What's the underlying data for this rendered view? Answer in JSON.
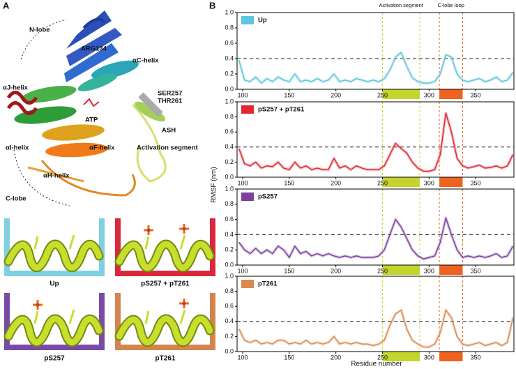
{
  "panel_a": {
    "label": "A",
    "structure_labels": [
      "N-lobe",
      "ARG134",
      "αC-helix",
      "αJ-helix",
      "SER257",
      "THR261",
      "ATP",
      "ASH",
      "αI-helix",
      "αF-helix",
      "Activation segment",
      "αH-helix",
      "C-lobe"
    ],
    "tiles": [
      "Up",
      "pS257 + pT261",
      "pS257",
      "pT261"
    ]
  },
  "panel_b": {
    "label": "B",
    "y_label": "RMSF (nm)",
    "x_label": "Residue number",
    "regions": [
      {
        "label": "Activation segment",
        "start": 250,
        "end": 290,
        "color": "#c3d52a"
      },
      {
        "label": "C-lobe loop",
        "start": 311,
        "end": 336,
        "color": "#f0621f"
      }
    ],
    "reference_line": 0.4
  },
  "chart_data": [
    {
      "type": "line",
      "xlim": [
        94,
        391
      ],
      "ylim": [
        0,
        1
      ],
      "xticks": [
        100,
        150,
        200,
        250,
        300,
        350
      ],
      "yticks": [
        {
          "value": 0,
          "label": "0.0"
        },
        0.2,
        0.4,
        0.6,
        0.8,
        {
          "value": 1,
          "label": "1.0"
        }
      ],
      "x": [
        96,
        102,
        108,
        114,
        120,
        126,
        132,
        138,
        144,
        150,
        156,
        162,
        168,
        174,
        180,
        186,
        192,
        198,
        204,
        210,
        216,
        222,
        228,
        234,
        240,
        246,
        252,
        258,
        264,
        270,
        276,
        282,
        288,
        294,
        300,
        306,
        312,
        318,
        324,
        330,
        336,
        342,
        348,
        354,
        360,
        366,
        372,
        378,
        384,
        390
      ],
      "series": [
        {
          "name": "Up",
          "color": "#5bc6de",
          "values": [
            0.38,
            0.12,
            0.1,
            0.16,
            0.08,
            0.14,
            0.1,
            0.16,
            0.12,
            0.1,
            0.2,
            0.1,
            0.12,
            0.1,
            0.14,
            0.1,
            0.12,
            0.2,
            0.1,
            0.12,
            0.1,
            0.14,
            0.12,
            0.1,
            0.12,
            0.1,
            0.14,
            0.25,
            0.42,
            0.48,
            0.3,
            0.15,
            0.1,
            0.08,
            0.08,
            0.1,
            0.2,
            0.45,
            0.42,
            0.2,
            0.12,
            0.1,
            0.12,
            0.14,
            0.1,
            0.12,
            0.16,
            0.1,
            0.12,
            0.22
          ]
        }
      ]
    },
    {
      "type": "line",
      "xlim": [
        94,
        391
      ],
      "ylim": [
        0,
        1
      ],
      "xticks": [
        100,
        150,
        200,
        250,
        300,
        350
      ],
      "yticks": [
        {
          "value": 0,
          "label": "0.0"
        },
        0.2,
        0.4,
        0.6,
        0.8,
        {
          "value": 1,
          "label": "1.0"
        }
      ],
      "x": [
        96,
        102,
        108,
        114,
        120,
        126,
        132,
        138,
        144,
        150,
        156,
        162,
        168,
        174,
        180,
        186,
        192,
        198,
        204,
        210,
        216,
        222,
        228,
        234,
        240,
        246,
        252,
        258,
        264,
        270,
        276,
        282,
        288,
        294,
        300,
        306,
        312,
        318,
        324,
        330,
        336,
        342,
        348,
        354,
        360,
        366,
        372,
        378,
        384,
        390
      ],
      "series": [
        {
          "name": "pS257 + pT261",
          "color": "#e0262f",
          "values": [
            0.38,
            0.18,
            0.15,
            0.2,
            0.12,
            0.15,
            0.14,
            0.2,
            0.12,
            0.1,
            0.2,
            0.12,
            0.15,
            0.1,
            0.12,
            0.1,
            0.1,
            0.25,
            0.12,
            0.15,
            0.1,
            0.15,
            0.12,
            0.1,
            0.1,
            0.1,
            0.15,
            0.3,
            0.45,
            0.38,
            0.32,
            0.2,
            0.12,
            0.08,
            0.08,
            0.1,
            0.3,
            0.85,
            0.6,
            0.25,
            0.15,
            0.12,
            0.14,
            0.16,
            0.12,
            0.13,
            0.15,
            0.12,
            0.15,
            0.3
          ]
        }
      ]
    },
    {
      "type": "line",
      "xlim": [
        94,
        391
      ],
      "ylim": [
        0,
        1
      ],
      "xticks": [
        100,
        150,
        200,
        250,
        300,
        350
      ],
      "yticks": [
        {
          "value": 0,
          "label": "0.0"
        },
        0.2,
        0.4,
        0.6,
        0.8,
        {
          "value": 1,
          "label": "1.0"
        }
      ],
      "x": [
        96,
        102,
        108,
        114,
        120,
        126,
        132,
        138,
        144,
        150,
        156,
        162,
        168,
        174,
        180,
        186,
        192,
        198,
        204,
        210,
        216,
        222,
        228,
        234,
        240,
        246,
        252,
        258,
        264,
        270,
        276,
        282,
        288,
        294,
        300,
        306,
        312,
        318,
        324,
        330,
        336,
        342,
        348,
        354,
        360,
        366,
        372,
        378,
        384,
        390
      ],
      "series": [
        {
          "name": "pS257",
          "color": "#7b3f9e",
          "values": [
            0.3,
            0.2,
            0.15,
            0.22,
            0.15,
            0.2,
            0.15,
            0.25,
            0.2,
            0.1,
            0.25,
            0.15,
            0.18,
            0.12,
            0.15,
            0.12,
            0.15,
            0.12,
            0.1,
            0.12,
            0.1,
            0.12,
            0.1,
            0.1,
            0.1,
            0.12,
            0.2,
            0.4,
            0.6,
            0.5,
            0.35,
            0.2,
            0.12,
            0.08,
            0.1,
            0.12,
            0.3,
            0.62,
            0.4,
            0.2,
            0.1,
            0.12,
            0.1,
            0.12,
            0.1,
            0.12,
            0.15,
            0.1,
            0.12,
            0.25
          ]
        }
      ]
    },
    {
      "type": "line",
      "xlim": [
        94,
        391
      ],
      "ylim": [
        0,
        1
      ],
      "xticks": [
        100,
        150,
        200,
        250,
        300,
        350
      ],
      "yticks": [
        {
          "value": 0,
          "label": "0.0"
        },
        0.2,
        0.4,
        0.6,
        0.8,
        {
          "value": 1,
          "label": "1.0"
        }
      ],
      "x": [
        96,
        102,
        108,
        114,
        120,
        126,
        132,
        138,
        144,
        150,
        156,
        162,
        168,
        174,
        180,
        186,
        192,
        198,
        204,
        210,
        216,
        222,
        228,
        234,
        240,
        246,
        252,
        258,
        264,
        270,
        276,
        282,
        288,
        294,
        300,
        306,
        312,
        318,
        324,
        330,
        336,
        342,
        348,
        354,
        360,
        366,
        372,
        378,
        384,
        390
      ],
      "series": [
        {
          "name": "pT261",
          "color": "#d98a4f",
          "values": [
            0.3,
            0.15,
            0.12,
            0.15,
            0.1,
            0.12,
            0.1,
            0.15,
            0.15,
            0.1,
            0.12,
            0.1,
            0.15,
            0.1,
            0.12,
            0.1,
            0.12,
            0.2,
            0.1,
            0.12,
            0.1,
            0.12,
            0.1,
            0.1,
            0.08,
            0.1,
            0.15,
            0.35,
            0.5,
            0.55,
            0.3,
            0.15,
            0.1,
            0.06,
            0.06,
            0.1,
            0.25,
            0.55,
            0.45,
            0.2,
            0.1,
            0.08,
            0.1,
            0.12,
            0.08,
            0.1,
            0.12,
            0.08,
            0.12,
            0.45
          ]
        }
      ]
    }
  ]
}
